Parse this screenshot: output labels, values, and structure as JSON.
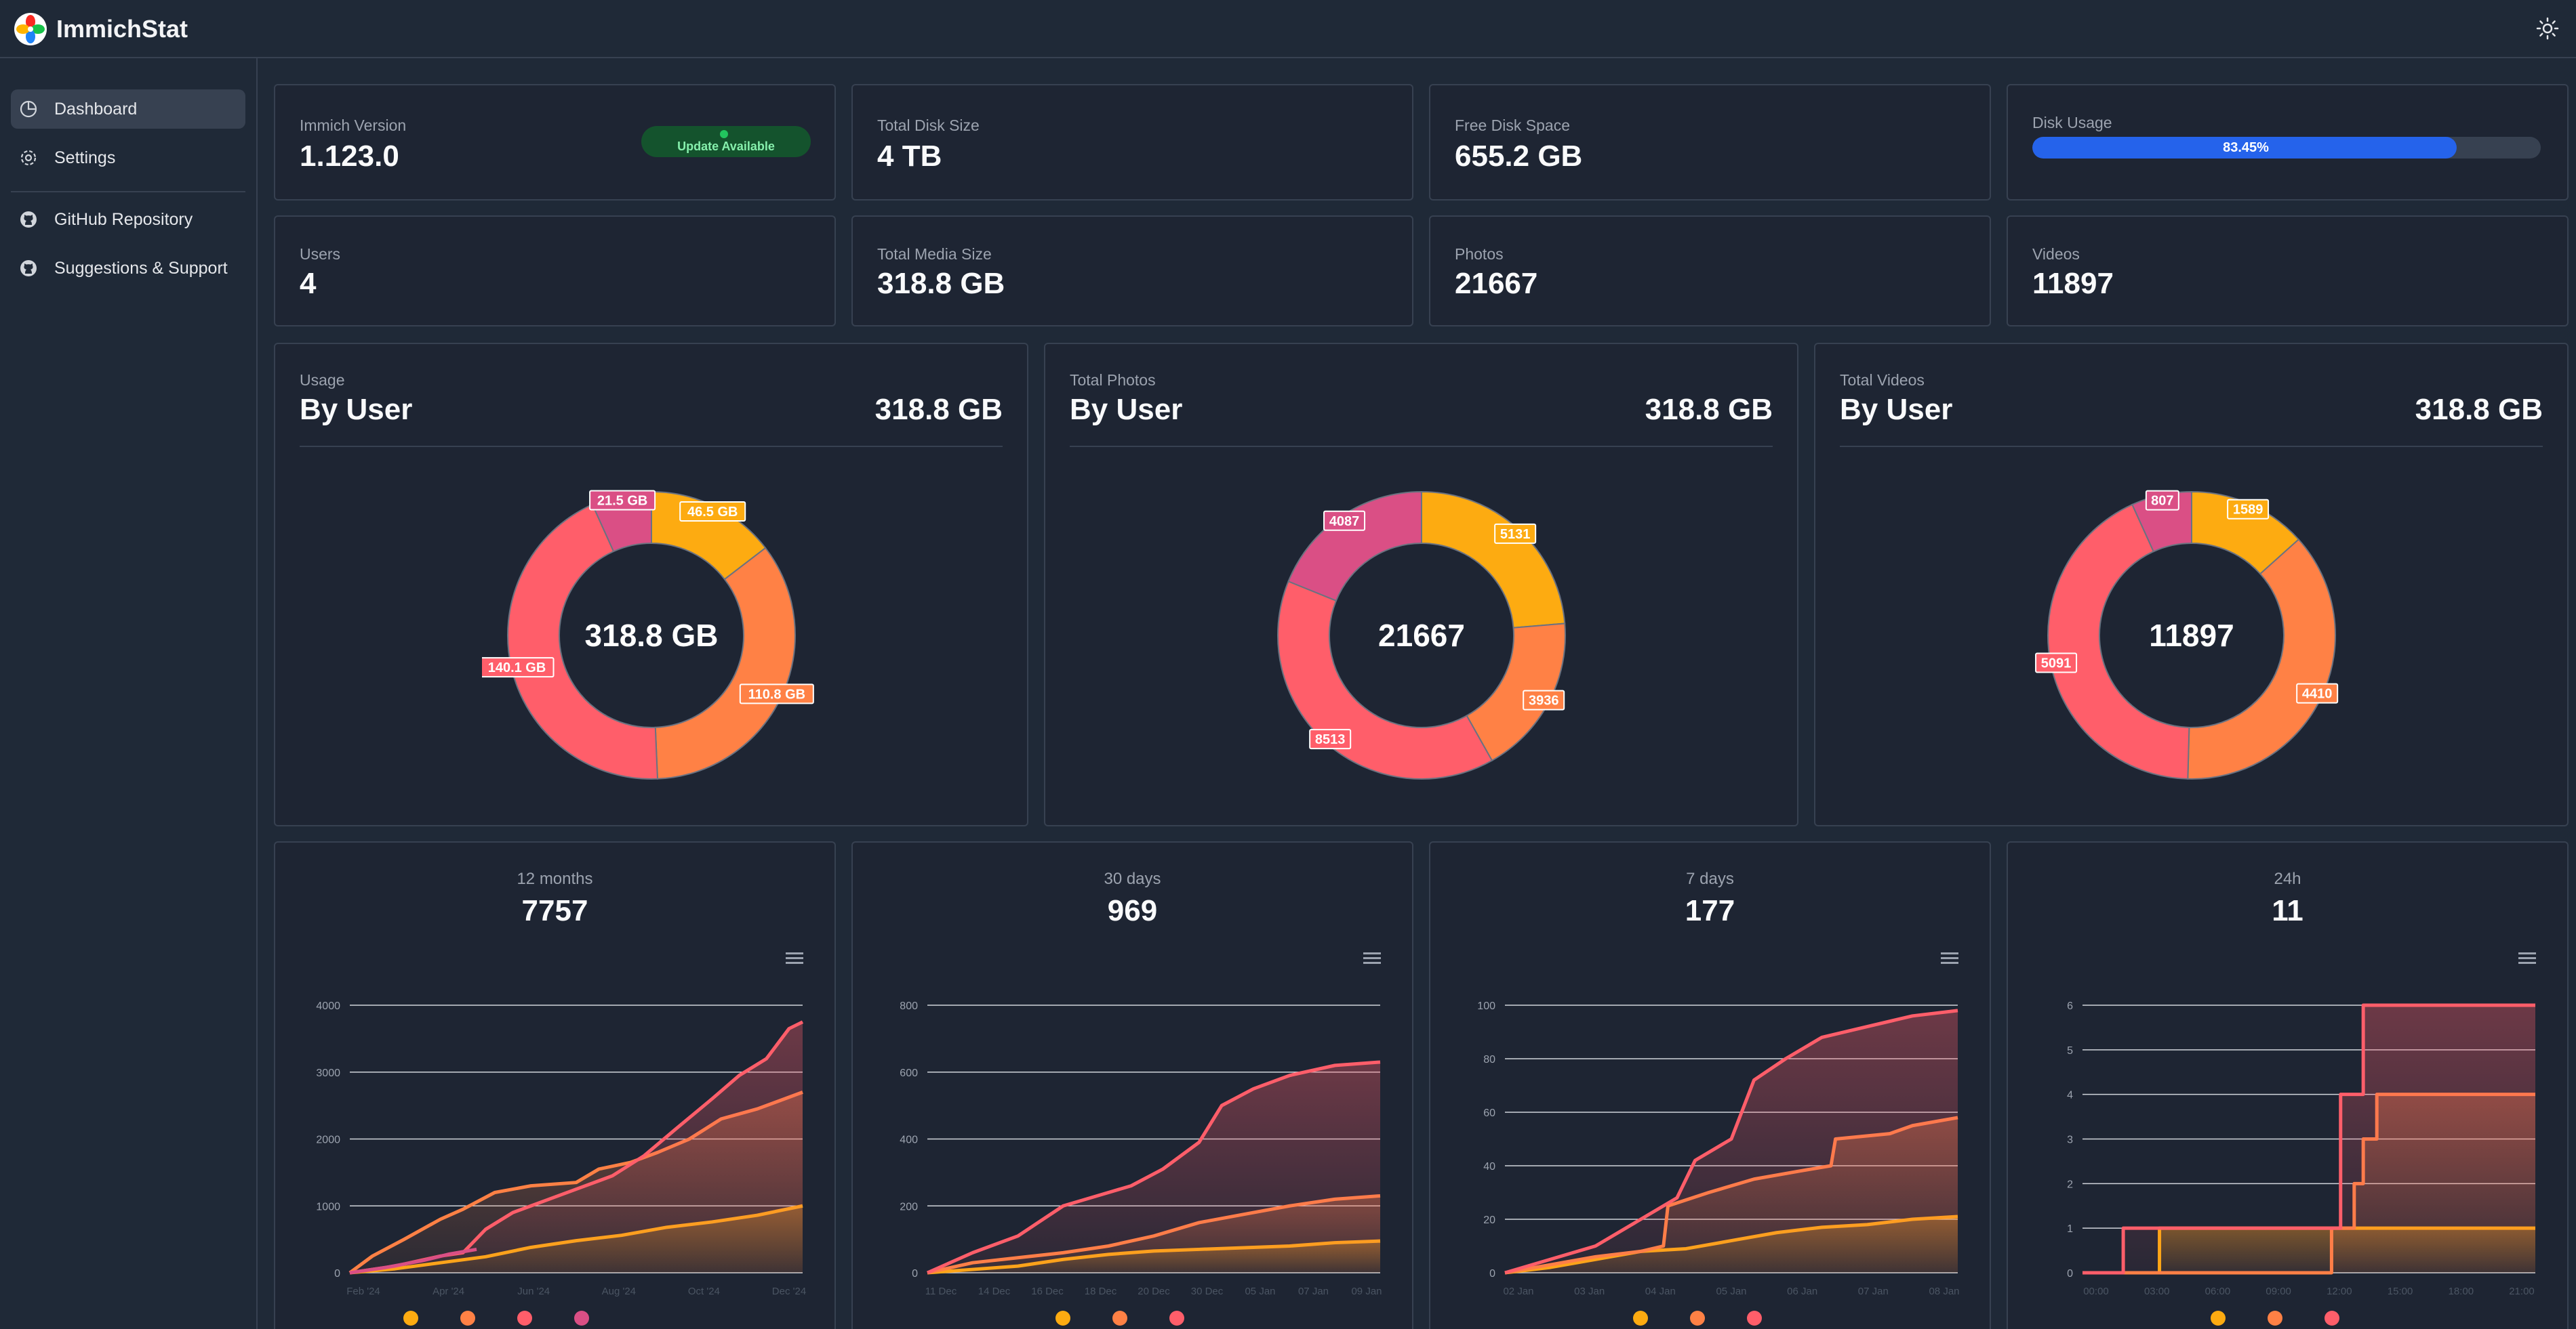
{
  "app": {
    "title": "ImmichStat"
  },
  "icons": {
    "logo": "immich-pinwheel-logo",
    "theme": "sun-icon",
    "dashboard": "pie-chart-icon",
    "settings": "gear-icon",
    "github": "github-icon",
    "support": "github-icon",
    "chart_menu": "hamburger-menu-icon"
  },
  "sidebar": {
    "items": [
      {
        "label": "Dashboard",
        "active": true
      },
      {
        "label": "Settings"
      },
      {
        "label": "GitHub Repository"
      },
      {
        "label": "Suggestions & Support"
      }
    ]
  },
  "stats": {
    "version": {
      "label": "Immich Version",
      "value": "1.123.0",
      "badge": "Update Available"
    },
    "disk_size": {
      "label": "Total Disk Size",
      "value": "4 TB"
    },
    "free_space": {
      "label": "Free Disk Space",
      "value": "655.2 GB"
    },
    "disk_usage": {
      "label": "Disk Usage",
      "value": "83.45%",
      "fraction": 0.8345
    },
    "users": {
      "label": "Users",
      "value": "4"
    },
    "media_size": {
      "label": "Total Media Size",
      "value": "318.8 GB"
    },
    "photos": {
      "label": "Photos",
      "value": "21667"
    },
    "videos": {
      "label": "Videos",
      "value": "11897"
    }
  },
  "colors": {
    "orange": "#fdab11",
    "coral": "#ff8145",
    "red": "#ff5e6a",
    "pink": "#da4f85",
    "accent": "#2563eb"
  },
  "donuts": [
    {
      "sub": "Usage",
      "title": "By User",
      "total": "318.8 GB",
      "center": "318.8 GB",
      "chart_data": {
        "type": "pie",
        "values": [
          46.5,
          110.8,
          140.1,
          21.5
        ],
        "labels": [
          "46.5 GB",
          "110.8 GB",
          "140.1 GB",
          "21.5 GB"
        ],
        "colors": [
          "#fdab11",
          "#ff8145",
          "#ff5e6a",
          "#da4f85"
        ]
      }
    },
    {
      "sub": "Total Photos",
      "title": "By User",
      "total": "318.8 GB",
      "center": "21667",
      "chart_data": {
        "type": "pie",
        "values": [
          5131,
          3936,
          8513,
          4087
        ],
        "labels": [
          "5131",
          "3936",
          "8513",
          "4087"
        ],
        "colors": [
          "#fdab11",
          "#ff8145",
          "#ff5e6a",
          "#da4f85"
        ]
      }
    },
    {
      "sub": "Total Videos",
      "title": "By User",
      "total": "318.8 GB",
      "center": "11897",
      "chart_data": {
        "type": "pie",
        "values": [
          1589,
          4410,
          5091,
          807
        ],
        "labels": [
          "1589",
          "4410",
          "5091",
          "807"
        ],
        "colors": [
          "#fdab11",
          "#ff8145",
          "#ff5e6a",
          "#da4f85"
        ]
      }
    }
  ],
  "timecharts": [
    {
      "period": "12 months",
      "count": "7757",
      "chart_data": {
        "type": "line",
        "ylim": [
          0,
          4000
        ],
        "yticks": [
          0,
          1000,
          2000,
          3000,
          4000
        ],
        "xticks": [
          "Feb '24",
          "Apr '24",
          "Jun '24",
          "Aug '24",
          "Oct '24",
          "Dec '24"
        ],
        "legend": [
          "#fdab11",
          "#ff8145",
          "#ff5e6a",
          "#da4f85"
        ],
        "series": [
          {
            "color": "#fdab11",
            "fill": true,
            "points": [
              [
                0,
                0
              ],
              [
                0.1,
                60
              ],
              [
                0.2,
                150
              ],
              [
                0.3,
                240
              ],
              [
                0.4,
                380
              ],
              [
                0.5,
                480
              ],
              [
                0.6,
                560
              ],
              [
                0.7,
                680
              ],
              [
                0.8,
                760
              ],
              [
                0.9,
                860
              ],
              [
                1,
                1000
              ]
            ]
          },
          {
            "color": "#ff8145",
            "fill": true,
            "points": [
              [
                0,
                0
              ],
              [
                0.05,
                250
              ],
              [
                0.12,
                500
              ],
              [
                0.2,
                800
              ],
              [
                0.25,
                950
              ],
              [
                0.32,
                1200
              ],
              [
                0.4,
                1300
              ],
              [
                0.5,
                1350
              ],
              [
                0.55,
                1550
              ],
              [
                0.62,
                1650
              ],
              [
                0.68,
                1800
              ],
              [
                0.75,
                2000
              ],
              [
                0.82,
                2300
              ],
              [
                0.9,
                2450
              ],
              [
                1,
                2700
              ]
            ]
          },
          {
            "color": "#ff5e6a",
            "fill": true,
            "points": [
              [
                0,
                0
              ],
              [
                0.1,
                100
              ],
              [
                0.2,
                250
              ],
              [
                0.25,
                300
              ],
              [
                0.3,
                650
              ],
              [
                0.36,
                900
              ],
              [
                0.42,
                1050
              ],
              [
                0.5,
                1250
              ],
              [
                0.58,
                1450
              ],
              [
                0.65,
                1750
              ],
              [
                0.72,
                2150
              ],
              [
                0.8,
                2600
              ],
              [
                0.86,
                2950
              ],
              [
                0.92,
                3200
              ],
              [
                0.97,
                3650
              ],
              [
                1,
                3750
              ]
            ]
          },
          {
            "color": "#da4f85",
            "fill": false,
            "points": [
              [
                0,
                0
              ],
              [
                0.08,
                80
              ],
              [
                0.16,
                180
              ],
              [
                0.22,
                280
              ],
              [
                0.28,
                350
              ]
            ]
          }
        ]
      }
    },
    {
      "period": "30 days",
      "count": "969",
      "chart_data": {
        "type": "line",
        "ylim": [
          0,
          800
        ],
        "yticks": [
          0,
          200,
          400,
          600,
          800
        ],
        "xticks": [
          "11 Dec",
          "14 Dec",
          "16 Dec",
          "18 Dec",
          "20 Dec",
          "30 Dec",
          "05 Jan",
          "07 Jan",
          "09 Jan"
        ],
        "legend": [
          "#fdab11",
          "#ff8145",
          "#ff5e6a"
        ],
        "series": [
          {
            "color": "#fdab11",
            "fill": true,
            "points": [
              [
                0,
                0
              ],
              [
                0.1,
                10
              ],
              [
                0.2,
                20
              ],
              [
                0.3,
                40
              ],
              [
                0.4,
                55
              ],
              [
                0.5,
                65
              ],
              [
                0.6,
                70
              ],
              [
                0.7,
                75
              ],
              [
                0.8,
                80
              ],
              [
                0.9,
                90
              ],
              [
                1,
                95
              ]
            ]
          },
          {
            "color": "#ff8145",
            "fill": true,
            "points": [
              [
                0,
                0
              ],
              [
                0.1,
                30
              ],
              [
                0.2,
                45
              ],
              [
                0.3,
                60
              ],
              [
                0.4,
                80
              ],
              [
                0.5,
                110
              ],
              [
                0.6,
                150
              ],
              [
                0.7,
                175
              ],
              [
                0.8,
                200
              ],
              [
                0.9,
                220
              ],
              [
                1,
                230
              ]
            ]
          },
          {
            "color": "#ff5e6a",
            "fill": true,
            "points": [
              [
                0,
                0
              ],
              [
                0.1,
                60
              ],
              [
                0.2,
                110
              ],
              [
                0.3,
                200
              ],
              [
                0.35,
                220
              ],
              [
                0.45,
                260
              ],
              [
                0.52,
                310
              ],
              [
                0.6,
                390
              ],
              [
                0.65,
                500
              ],
              [
                0.72,
                550
              ],
              [
                0.8,
                590
              ],
              [
                0.9,
                620
              ],
              [
                1,
                630
              ]
            ]
          }
        ]
      }
    },
    {
      "period": "7 days",
      "count": "177",
      "chart_data": {
        "type": "line",
        "ylim": [
          0,
          100
        ],
        "yticks": [
          0,
          20,
          40,
          60,
          80,
          100
        ],
        "xticks": [
          "02 Jan",
          "03 Jan",
          "04 Jan",
          "05 Jan",
          "06 Jan",
          "07 Jan",
          "08 Jan"
        ],
        "legend": [
          "#fdab11",
          "#ff8145",
          "#ff5e6a"
        ],
        "series": [
          {
            "color": "#fdab11",
            "fill": true,
            "points": [
              [
                0,
                0
              ],
              [
                0.1,
                2
              ],
              [
                0.2,
                5
              ],
              [
                0.3,
                8
              ],
              [
                0.4,
                9
              ],
              [
                0.5,
                12
              ],
              [
                0.6,
                15
              ],
              [
                0.7,
                17
              ],
              [
                0.8,
                18
              ],
              [
                0.9,
                20
              ],
              [
                1,
                21
              ]
            ]
          },
          {
            "color": "#ff8145",
            "fill": true,
            "points": [
              [
                0,
                0
              ],
              [
                0.1,
                3
              ],
              [
                0.2,
                6
              ],
              [
                0.3,
                8
              ],
              [
                0.35,
                10
              ],
              [
                0.36,
                25
              ],
              [
                0.45,
                30
              ],
              [
                0.55,
                35
              ],
              [
                0.65,
                38
              ],
              [
                0.72,
                40
              ],
              [
                0.73,
                50
              ],
              [
                0.85,
                52
              ],
              [
                0.9,
                55
              ],
              [
                1,
                58
              ]
            ]
          },
          {
            "color": "#ff5e6a",
            "fill": true,
            "points": [
              [
                0,
                0
              ],
              [
                0.1,
                5
              ],
              [
                0.2,
                10
              ],
              [
                0.3,
                20
              ],
              [
                0.38,
                28
              ],
              [
                0.42,
                42
              ],
              [
                0.5,
                50
              ],
              [
                0.55,
                72
              ],
              [
                0.62,
                80
              ],
              [
                0.7,
                88
              ],
              [
                0.8,
                92
              ],
              [
                0.9,
                96
              ],
              [
                1,
                98
              ]
            ]
          }
        ]
      }
    },
    {
      "period": "24h",
      "count": "11",
      "chart_data": {
        "type": "line",
        "ylim": [
          0,
          6
        ],
        "yticks": [
          0,
          1,
          2,
          3,
          4,
          5,
          6
        ],
        "xticks": [
          "00:00",
          "03:00",
          "06:00",
          "09:00",
          "12:00",
          "15:00",
          "18:00",
          "21:00"
        ],
        "legend": [
          "#fdab11",
          "#ff8145",
          "#ff5e6a"
        ],
        "series": [
          {
            "color": "#fdab11",
            "fill": true,
            "points": [
              [
                0,
                0
              ],
              [
                0.17,
                0
              ],
              [
                0.17,
                1
              ],
              [
                1,
                1
              ]
            ]
          },
          {
            "color": "#ff8145",
            "fill": true,
            "points": [
              [
                0,
                0
              ],
              [
                0.55,
                0
              ],
              [
                0.55,
                1
              ],
              [
                0.6,
                1
              ],
              [
                0.6,
                2
              ],
              [
                0.62,
                2
              ],
              [
                0.62,
                3
              ],
              [
                0.65,
                3
              ],
              [
                0.65,
                4
              ],
              [
                1,
                4
              ]
            ]
          },
          {
            "color": "#ff5e6a",
            "fill": true,
            "points": [
              [
                0,
                0
              ],
              [
                0.09,
                0
              ],
              [
                0.09,
                1
              ],
              [
                0.57,
                1
              ],
              [
                0.57,
                4
              ],
              [
                0.62,
                4
              ],
              [
                0.62,
                6
              ],
              [
                1,
                6
              ]
            ]
          }
        ]
      }
    }
  ]
}
